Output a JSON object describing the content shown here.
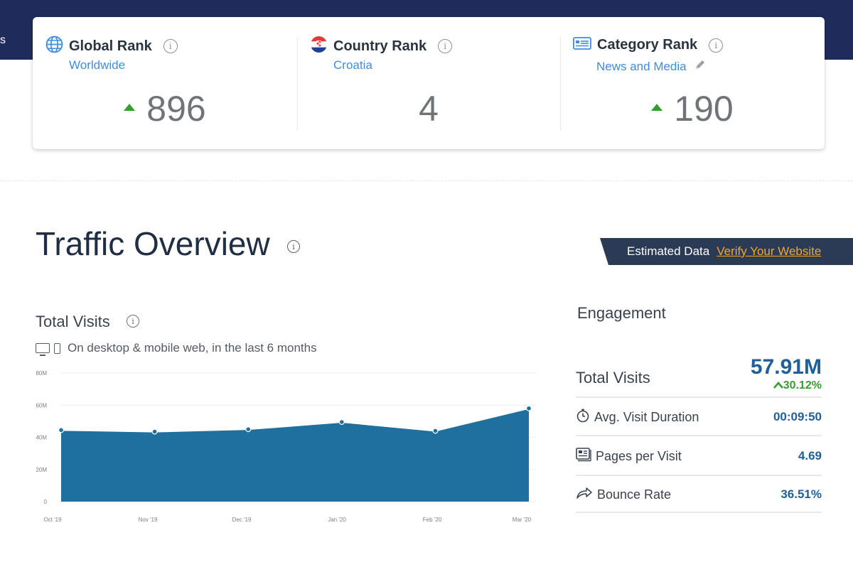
{
  "topbar": {
    "edge_text": "s"
  },
  "ranks": [
    {
      "title": "Global Rank",
      "subtitle": "Worldwide",
      "value": "896",
      "icon": "globe-icon"
    },
    {
      "title": "Country Rank",
      "subtitle": "Croatia",
      "value": "4",
      "icon": "croatia-flag-icon"
    },
    {
      "title": "Category Rank",
      "subtitle": "News and Media",
      "value": "190",
      "icon": "category-icon"
    }
  ],
  "traffic": {
    "title": "Traffic Overview",
    "estimated_label": "Estimated Data",
    "verify_link": "Verify Your Website"
  },
  "total_visits": {
    "title": "Total Visits",
    "device_note": "On desktop & mobile web, in the last 6 months"
  },
  "chart_data": {
    "type": "area",
    "title": "Total Visits",
    "categories": [
      "Oct '19",
      "Nov '19",
      "Dec '19",
      "Jan '20",
      "Feb '20",
      "Mar '20"
    ],
    "values": [
      44.5,
      43.5,
      45,
      49.5,
      44,
      58
    ],
    "ylim": [
      0,
      80
    ],
    "yticks": [
      0,
      20,
      40,
      60,
      80
    ],
    "ytick_labels": [
      "0",
      "20M",
      "40M",
      "60M",
      "80M"
    ],
    "color": "#1f6f9f",
    "grid": true
  },
  "engagement": {
    "title": "Engagement",
    "total_visits_label": "Total Visits",
    "total_visits_value": "57.91M",
    "total_visits_change": "30.12%",
    "rows": [
      {
        "label": "Avg. Visit Duration",
        "value": "00:09:50",
        "icon": "stopwatch-icon"
      },
      {
        "label": "Pages per Visit",
        "value": "4.69",
        "icon": "pages-icon"
      },
      {
        "label": "Bounce Rate",
        "value": "36.51%",
        "icon": "bounce-arrow-icon"
      }
    ]
  }
}
